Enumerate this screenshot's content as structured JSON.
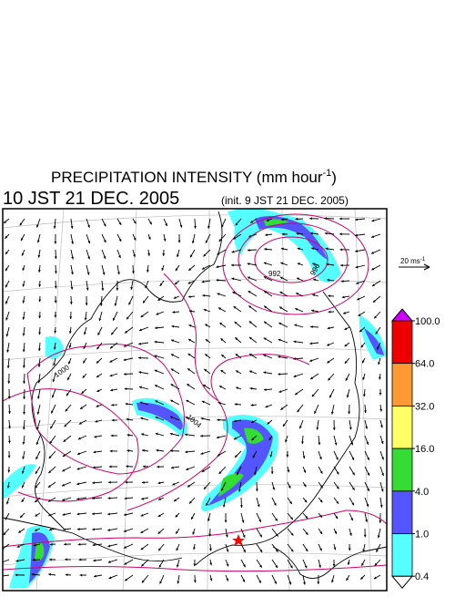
{
  "header": {
    "title_main": "PRECIPITATION INTENSITY (mm hour",
    "title_sup": "-1",
    "title_end": ")",
    "valid_time": "10 JST 21 DEC. 2005",
    "init_time": "(init. 9 JST 21 DEC. 2005)"
  },
  "wind_reference": {
    "label": "20 ms",
    "sup": "-1"
  },
  "isobar_labels": [
    "992",
    "996",
    "1000",
    "1004"
  ],
  "colorbar": {
    "ticks": [
      {
        "value": 100,
        "label": "100.0"
      },
      {
        "value": 64,
        "label": "64.0"
      },
      {
        "value": 32,
        "label": "32.0"
      },
      {
        "value": 16,
        "label": "16.0"
      },
      {
        "value": 4,
        "label": "4.0"
      },
      {
        "value": 1,
        "label": "1.0"
      },
      {
        "value": 0.4,
        "label": "0.4"
      }
    ],
    "colors": [
      "#cc00ff",
      "#ee0000",
      "#ff9933",
      "#ffff66",
      "#33dd33",
      "#5555ff",
      "#55ffff",
      "#ffffff"
    ]
  }
}
